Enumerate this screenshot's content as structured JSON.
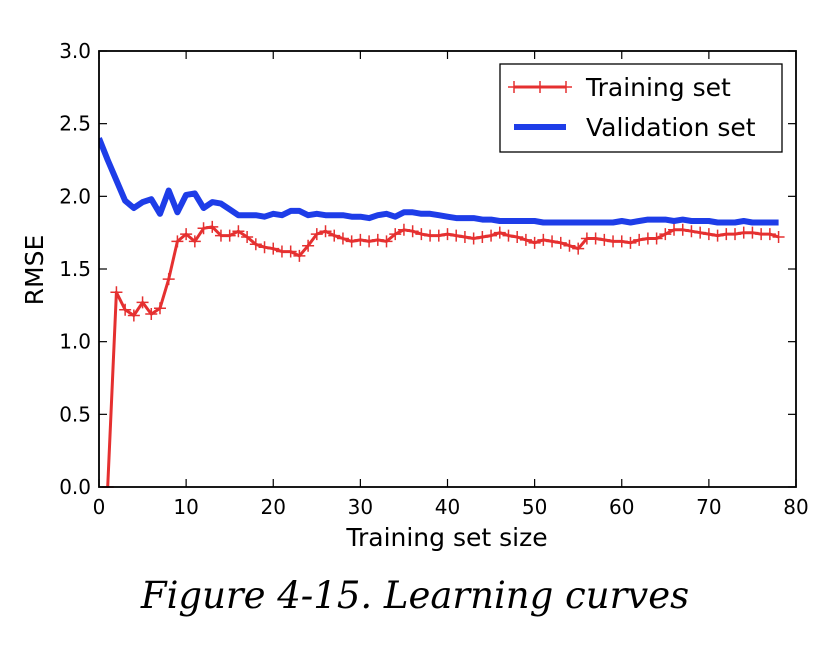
{
  "caption": "Figure 4-15. Learning curves",
  "chart_data": {
    "type": "line",
    "xlabel": "Training set size",
    "ylabel": "RMSE",
    "xlim": [
      0,
      80
    ],
    "ylim": [
      0,
      3.0
    ],
    "xticks": [
      "0",
      "10",
      "20",
      "30",
      "40",
      "50",
      "60",
      "70",
      "80"
    ],
    "yticks": [
      "0.0",
      "0.5",
      "1.0",
      "1.5",
      "2.0",
      "2.5",
      "3.0"
    ],
    "grid": false,
    "legend": "top-right",
    "series": [
      {
        "name": "Training set",
        "color": "#e53030",
        "marker": "plus",
        "x": [
          1,
          2,
          3,
          4,
          5,
          6,
          7,
          8,
          9,
          10,
          11,
          12,
          13,
          14,
          15,
          16,
          17,
          18,
          19,
          20,
          21,
          22,
          23,
          24,
          25,
          26,
          27,
          28,
          29,
          30,
          31,
          32,
          33,
          34,
          35,
          36,
          37,
          38,
          39,
          40,
          41,
          42,
          43,
          44,
          45,
          46,
          47,
          48,
          49,
          50,
          51,
          52,
          53,
          54,
          55,
          56,
          57,
          58,
          59,
          60,
          61,
          62,
          63,
          64,
          65,
          66,
          67,
          68,
          69,
          70,
          71,
          72,
          73,
          74,
          75,
          76,
          77,
          78
        ],
        "y": [
          0.0,
          1.34,
          1.22,
          1.18,
          1.27,
          1.19,
          1.23,
          1.43,
          1.69,
          1.74,
          1.69,
          1.78,
          1.79,
          1.73,
          1.73,
          1.76,
          1.72,
          1.67,
          1.65,
          1.64,
          1.62,
          1.62,
          1.59,
          1.66,
          1.74,
          1.76,
          1.73,
          1.71,
          1.69,
          1.7,
          1.69,
          1.7,
          1.69,
          1.74,
          1.77,
          1.76,
          1.74,
          1.73,
          1.73,
          1.74,
          1.73,
          1.72,
          1.71,
          1.72,
          1.73,
          1.75,
          1.73,
          1.72,
          1.7,
          1.68,
          1.7,
          1.69,
          1.68,
          1.66,
          1.64,
          1.71,
          1.71,
          1.7,
          1.69,
          1.69,
          1.68,
          1.7,
          1.71,
          1.71,
          1.74,
          1.77,
          1.77,
          1.76,
          1.75,
          1.74,
          1.73,
          1.74,
          1.74,
          1.75,
          1.75,
          1.74,
          1.74,
          1.72
        ]
      },
      {
        "name": "Validation set",
        "color": "#1e3de8",
        "marker": "none",
        "x": [
          0,
          1,
          2,
          3,
          4,
          5,
          6,
          7,
          8,
          9,
          10,
          11,
          12,
          13,
          14,
          15,
          16,
          17,
          18,
          19,
          20,
          21,
          22,
          23,
          24,
          25,
          26,
          27,
          28,
          29,
          30,
          31,
          32,
          33,
          34,
          35,
          36,
          37,
          38,
          39,
          40,
          41,
          42,
          43,
          44,
          45,
          46,
          47,
          48,
          49,
          50,
          51,
          52,
          53,
          54,
          55,
          56,
          57,
          58,
          59,
          60,
          61,
          62,
          63,
          64,
          65,
          66,
          67,
          68,
          69,
          70,
          71,
          72,
          73,
          74,
          75,
          76,
          77,
          78
        ],
        "y": [
          2.4,
          2.25,
          2.11,
          1.97,
          1.92,
          1.96,
          1.98,
          1.88,
          2.04,
          1.89,
          2.01,
          2.02,
          1.92,
          1.96,
          1.95,
          1.91,
          1.87,
          1.87,
          1.87,
          1.86,
          1.88,
          1.87,
          1.9,
          1.9,
          1.87,
          1.88,
          1.87,
          1.87,
          1.87,
          1.86,
          1.86,
          1.85,
          1.87,
          1.88,
          1.86,
          1.89,
          1.89,
          1.88,
          1.88,
          1.87,
          1.86,
          1.85,
          1.85,
          1.85,
          1.84,
          1.84,
          1.83,
          1.83,
          1.83,
          1.83,
          1.83,
          1.82,
          1.82,
          1.82,
          1.82,
          1.82,
          1.82,
          1.82,
          1.82,
          1.82,
          1.83,
          1.82,
          1.83,
          1.84,
          1.84,
          1.84,
          1.83,
          1.84,
          1.83,
          1.83,
          1.83,
          1.82,
          1.82,
          1.82,
          1.83,
          1.82,
          1.82,
          1.82,
          1.82
        ]
      }
    ]
  }
}
